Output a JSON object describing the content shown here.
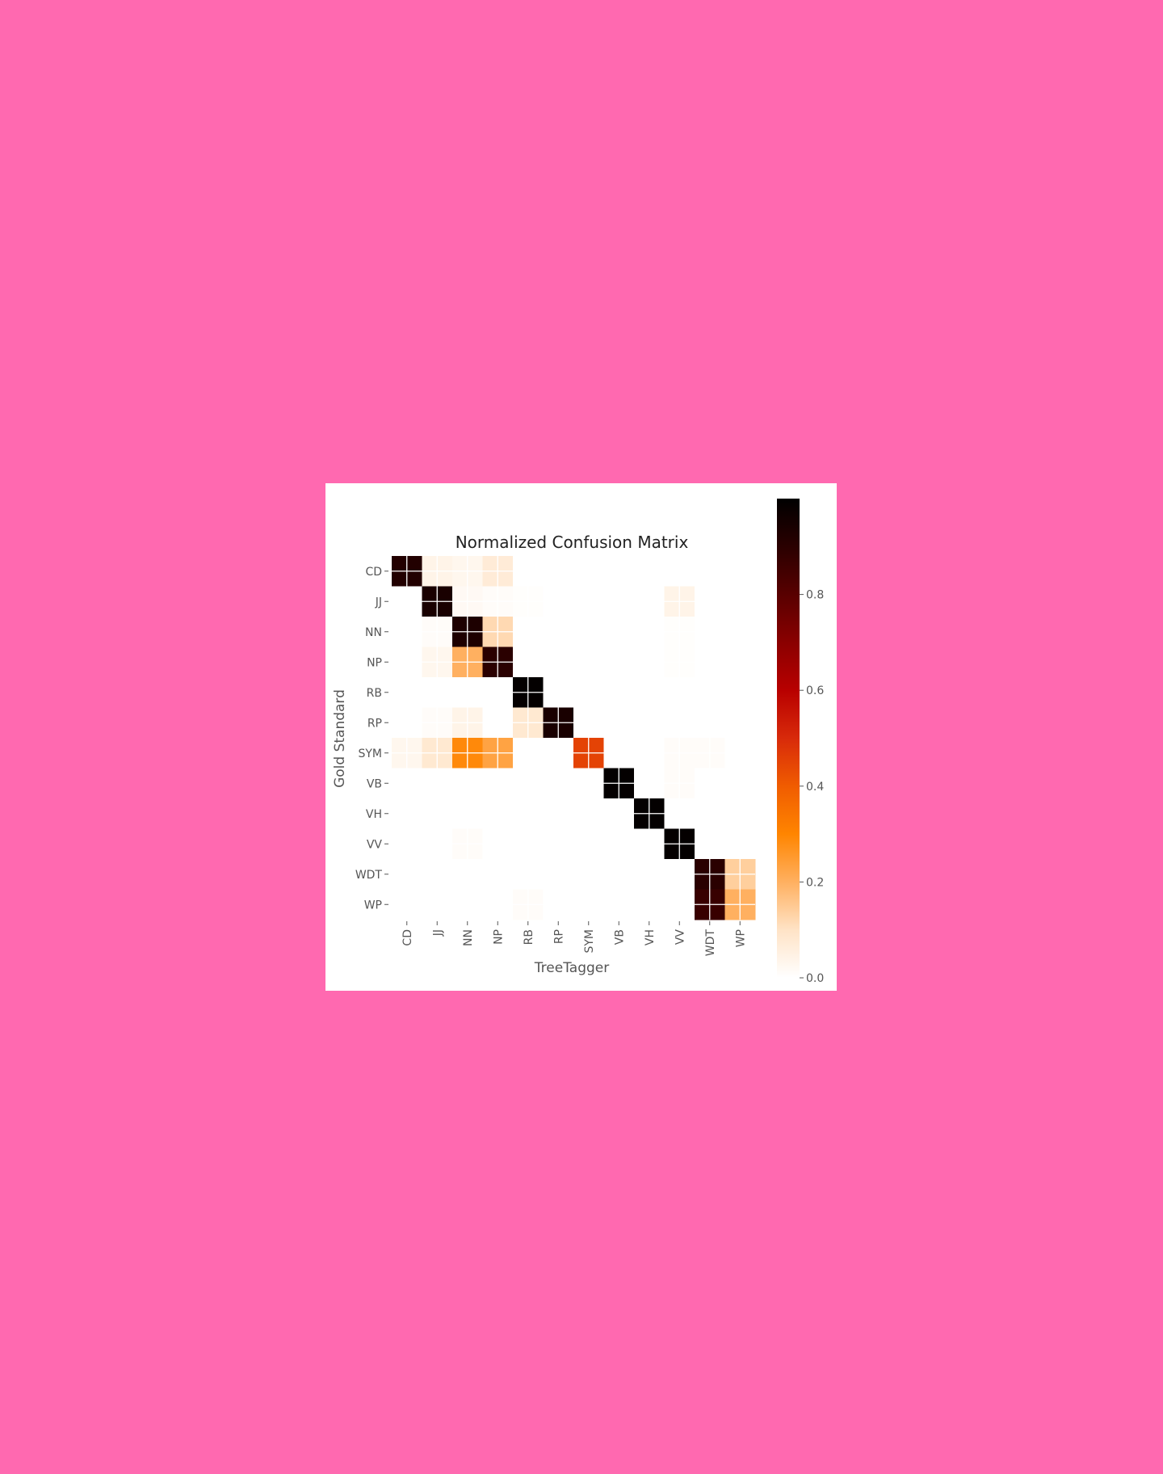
{
  "background_color": "#ff69b0",
  "chart_data": {
    "type": "heatmap",
    "title": "Normalized Confusion Matrix",
    "xlabel": "TreeTagger",
    "ylabel": "Gold Standard",
    "x_categories": [
      "CD",
      "JJ",
      "NN",
      "NP",
      "RB",
      "RP",
      "SYM",
      "VB",
      "VH",
      "VV",
      "WDT",
      "WP"
    ],
    "y_categories": [
      "CD",
      "JJ",
      "NN",
      "NP",
      "RB",
      "RP",
      "SYM",
      "VB",
      "VH",
      "VV",
      "WDT",
      "WP"
    ],
    "values": [
      [
        0.92,
        0.04,
        0.03,
        0.07,
        0,
        0,
        0,
        0,
        0,
        0,
        0,
        0
      ],
      [
        0,
        0.94,
        0.02,
        0.01,
        0.005,
        0,
        0,
        0,
        0,
        0.04,
        0,
        0
      ],
      [
        0,
        0.01,
        0.93,
        0.12,
        0,
        0,
        0,
        0,
        0,
        0.005,
        0,
        0
      ],
      [
        0,
        0.03,
        0.2,
        0.9,
        0,
        0,
        0,
        0,
        0,
        0.005,
        0,
        0
      ],
      [
        0,
        0,
        0,
        0,
        0.99,
        0,
        0,
        0,
        0,
        0,
        0,
        0
      ],
      [
        0,
        0.01,
        0.04,
        0,
        0.08,
        0.94,
        0,
        0,
        0,
        0,
        0,
        0
      ],
      [
        0.03,
        0.08,
        0.29,
        0.23,
        0,
        0,
        0.45,
        0,
        0,
        0.01,
        0.01,
        0
      ],
      [
        0,
        0,
        0,
        0,
        0,
        0,
        0,
        0.99,
        0,
        0.01,
        0,
        0
      ],
      [
        0,
        0,
        0,
        0,
        0,
        0,
        0,
        0,
        0.99,
        0,
        0,
        0
      ],
      [
        0,
        0,
        0.01,
        0,
        0,
        0,
        0,
        0,
        0,
        0.99,
        0,
        0
      ],
      [
        0,
        0,
        0,
        0,
        0,
        0,
        0,
        0,
        0,
        0,
        0.9,
        0.14
      ],
      [
        0,
        0,
        0,
        0,
        0.01,
        0,
        0,
        0,
        0,
        0,
        0.87,
        0.2
      ]
    ],
    "colormap": "gist_heat_r",
    "colorbar": {
      "range": [
        0,
        1
      ],
      "ticks": [
        0.0,
        0.2,
        0.4,
        0.6,
        0.8
      ],
      "tick_labels": [
        "0.0",
        "0.2",
        "0.4",
        "0.6",
        "0.8"
      ]
    },
    "grid": true,
    "grid_color": "#ffffff"
  }
}
